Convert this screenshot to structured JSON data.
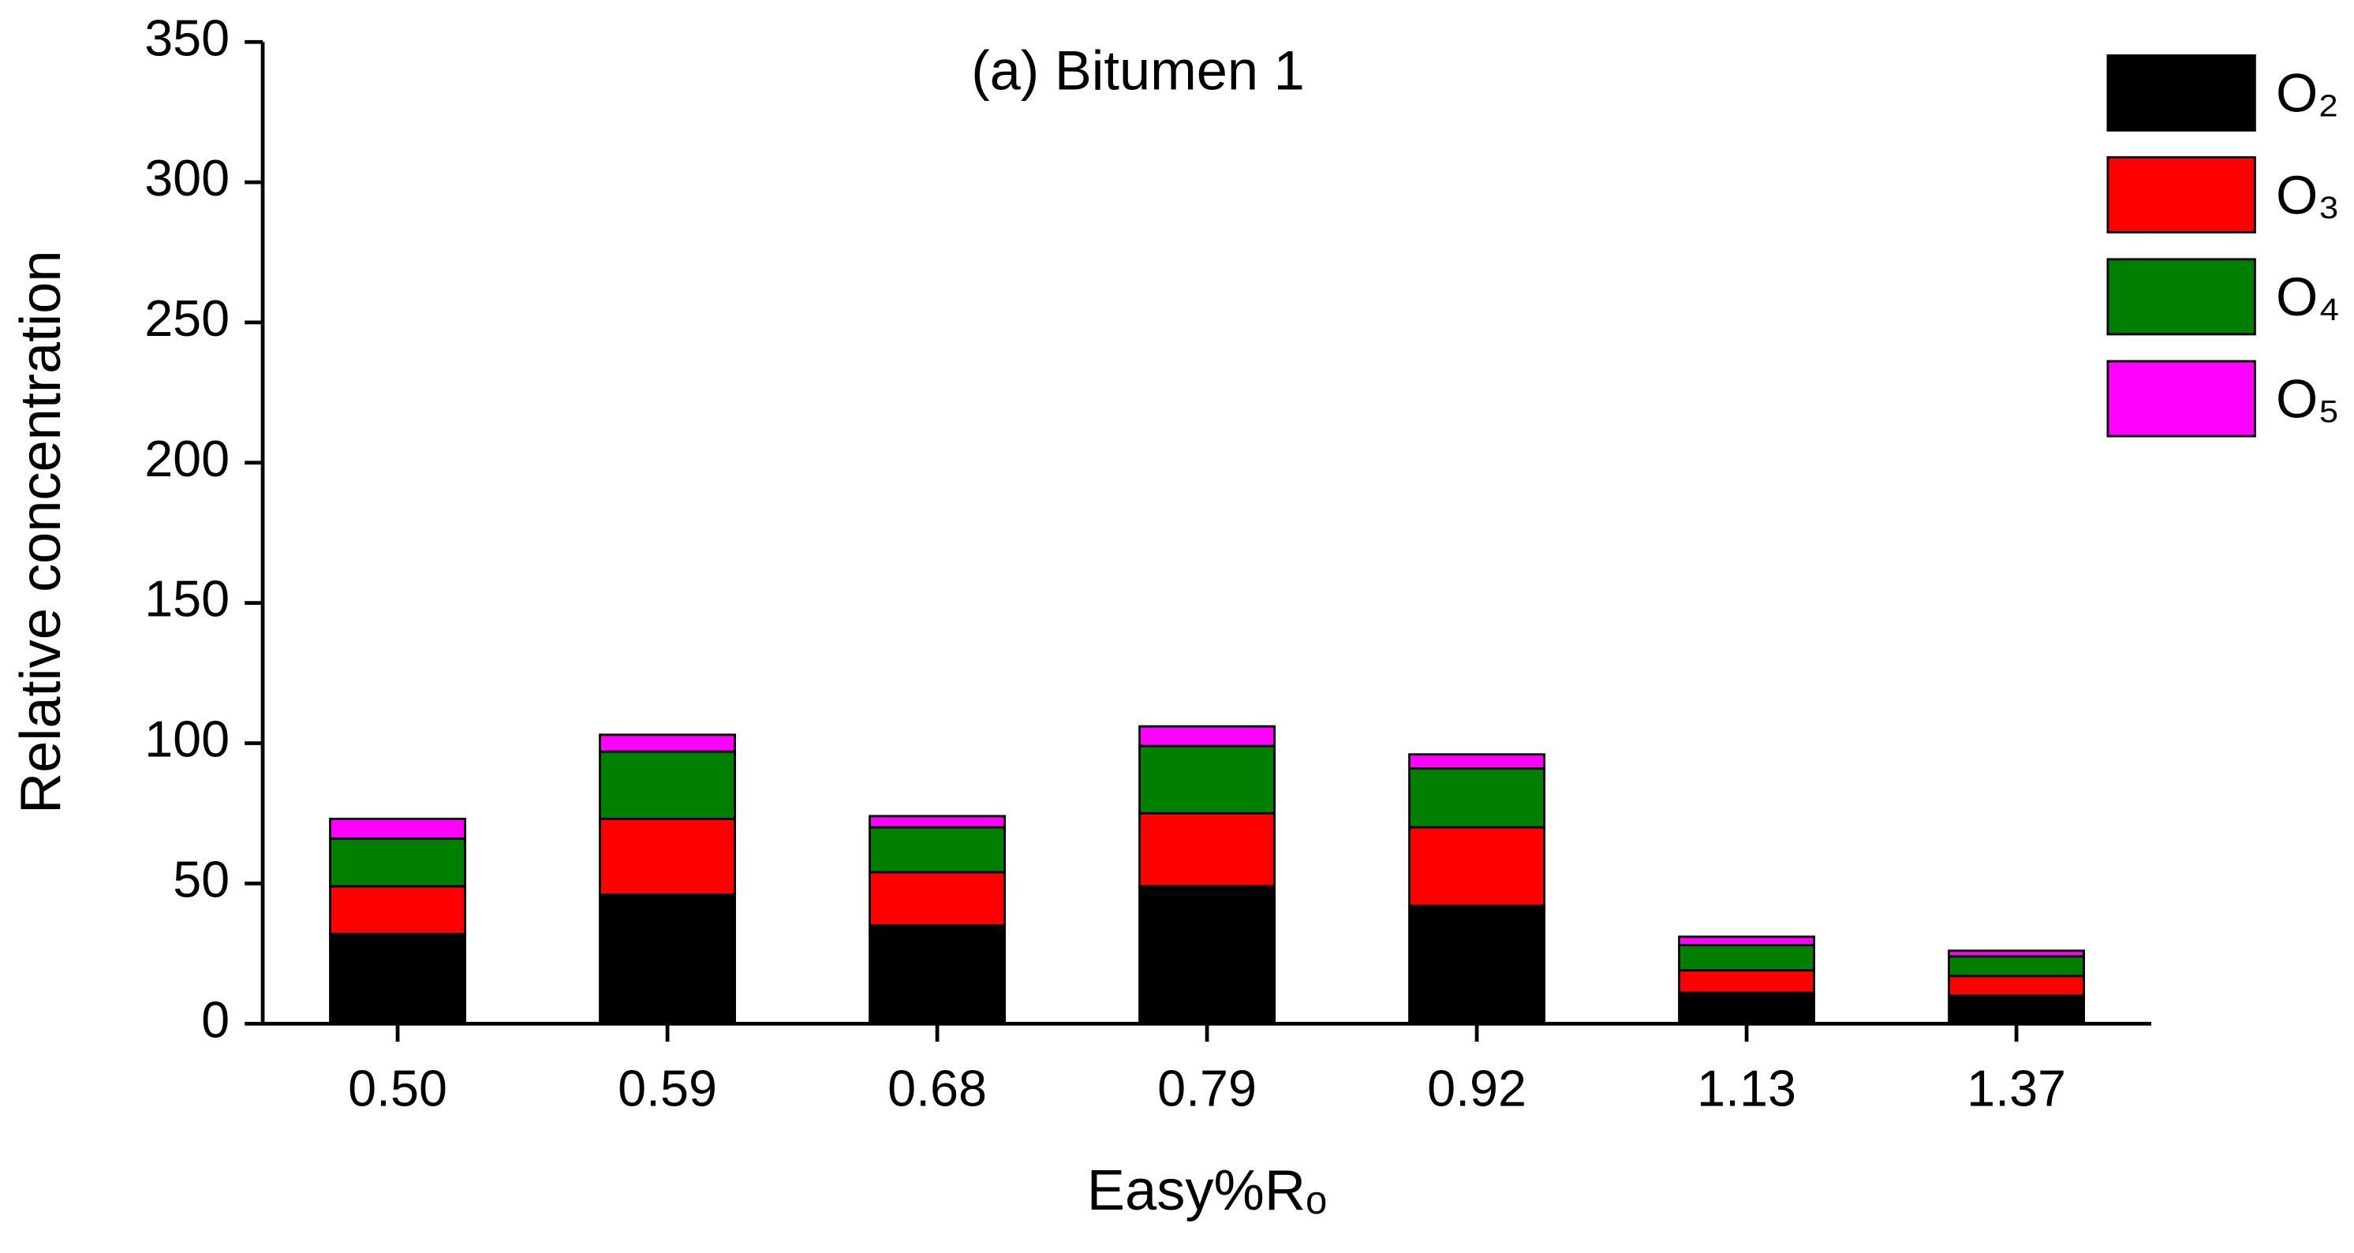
{
  "chart_data": {
    "type": "stacked-bar",
    "title": "(a) Bitumen 1",
    "x_label": "Easy%Rₒ",
    "y_label": "Relative concentration",
    "categories": [
      "0.50",
      "0.59",
      "0.68",
      "0.79",
      "0.92",
      "1.13",
      "1.37"
    ],
    "series": [
      {
        "name": "O₂",
        "color": "#000000",
        "values": [
          32,
          46,
          35,
          49,
          42,
          11,
          10
        ]
      },
      {
        "name": "O₃",
        "color": "#ff0000",
        "values": [
          17,
          27,
          19,
          26,
          28,
          8,
          7
        ]
      },
      {
        "name": "O₄",
        "color": "#007f00",
        "values": [
          17,
          24,
          16,
          24,
          21,
          9,
          7
        ]
      },
      {
        "name": "O₅",
        "color": "#ff00ff",
        "values": [
          7,
          6,
          4,
          7,
          5,
          3,
          2
        ]
      }
    ],
    "ylim": [
      0,
      350
    ],
    "yticks": [
      0,
      50,
      100,
      150,
      200,
      250,
      300,
      350
    ],
    "legend": "top-right"
  }
}
